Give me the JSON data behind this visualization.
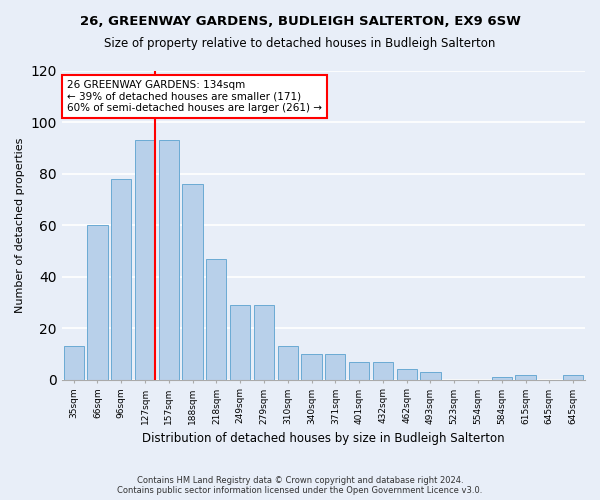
{
  "title": "26, GREENWAY GARDENS, BUDLEIGH SALTERTON, EX9 6SW",
  "subtitle": "Size of property relative to detached houses in Budleigh Salterton",
  "xlabel": "Distribution of detached houses by size in Budleigh Salterton",
  "ylabel": "Number of detached properties",
  "bar_values": [
    13,
    60,
    78,
    93,
    93,
    76,
    47,
    29,
    29,
    13,
    10,
    10,
    7,
    7,
    4,
    3,
    0,
    0,
    1,
    2,
    0,
    2
  ],
  "bar_labels": [
    "35sqm",
    "66sqm",
    "96sqm",
    "127sqm",
    "157sqm",
    "188sqm",
    "218sqm",
    "249sqm",
    "279sqm",
    "310sqm",
    "340sqm",
    "371sqm",
    "401sqm",
    "432sqm",
    "462sqm",
    "493sqm",
    "523sqm",
    "554sqm",
    "584sqm",
    "615sqm",
    "645sqm",
    "645sqm"
  ],
  "bar_color": "#b8d0ea",
  "bar_edge_color": "#6aaad4",
  "background_color": "#e8eef8",
  "grid_color": "#ffffff",
  "vline_x_index": 3,
  "vline_color": "red",
  "annotation_text": "26 GREENWAY GARDENS: 134sqm\n← 39% of detached houses are smaller (171)\n60% of semi-detached houses are larger (261) →",
  "annotation_box_color": "white",
  "annotation_box_edge": "red",
  "ylim": [
    0,
    120
  ],
  "yticks": [
    0,
    20,
    40,
    60,
    80,
    100,
    120
  ],
  "footnote1": "Contains HM Land Registry data © Crown copyright and database right 2024.",
  "footnote2": "Contains public sector information licensed under the Open Government Licence v3.0."
}
